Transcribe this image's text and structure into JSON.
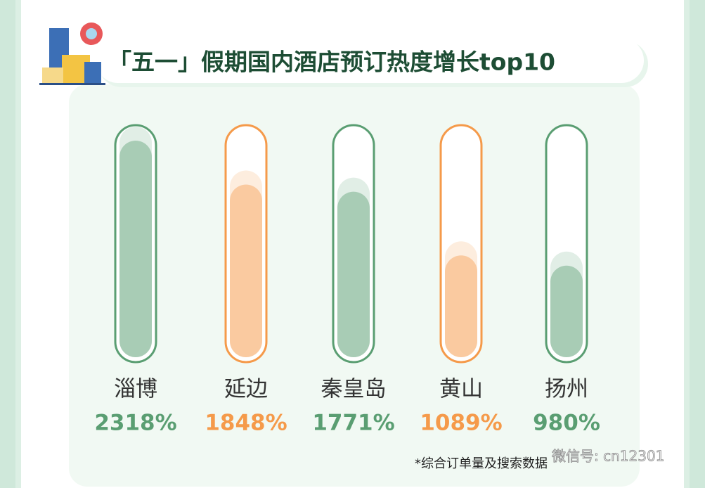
{
  "chart_data": {
    "type": "bar",
    "title": "「五一」假期国内酒店预订热度增长top10",
    "categories": [
      "淄博",
      "延边",
      "秦皇岛",
      "黄山",
      "扬州"
    ],
    "values": [
      2318,
      1848,
      1771,
      1089,
      980
    ],
    "value_labels": [
      "2318%",
      "1848%",
      "1771%",
      "1089%",
      "980%"
    ],
    "colors": [
      "#5a9e72",
      "#f59a4a",
      "#5a9e72",
      "#f59a4a",
      "#5a9e72"
    ],
    "note": "*综合订单量及搜索数据",
    "watermark": "微信号: cn12301"
  }
}
